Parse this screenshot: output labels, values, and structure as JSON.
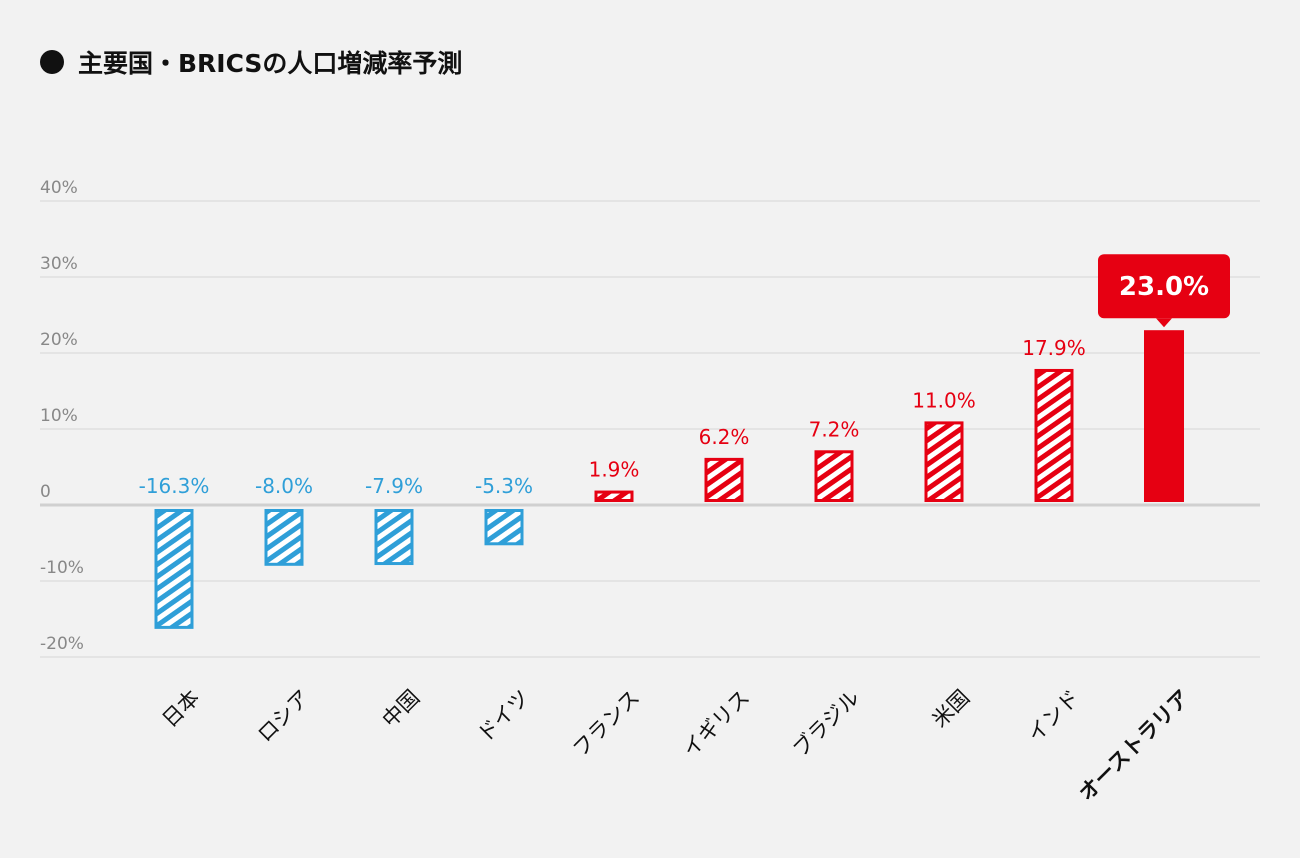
{
  "chart_data": {
    "type": "bar",
    "title": "主要国・BRICSの人口増減率予測",
    "categories": [
      "日本",
      "ロシア",
      "中国",
      "ドイツ",
      "フランス",
      "イギリス",
      "ブラジル",
      "米国",
      "インド",
      "オーストラリア"
    ],
    "values": [
      -16.3,
      -8.0,
      -7.9,
      -5.3,
      1.9,
      6.2,
      7.2,
      11.0,
      17.9,
      23.0
    ],
    "value_labels": [
      "-16.3%",
      "-8.0%",
      "-7.9%",
      "-5.3%",
      "1.9%",
      "6.2%",
      "7.2%",
      "11.0%",
      "17.9%",
      "23.0%"
    ],
    "highlight_index": 9,
    "yticks": [
      40,
      30,
      20,
      10,
      0,
      -10,
      -20
    ],
    "ytick_labels": [
      "40%",
      "30%",
      "20%",
      "10%",
      "0",
      "-10%",
      "-20%"
    ],
    "ylim": [
      -20,
      40
    ],
    "grid": true,
    "colors": {
      "negative": "#2f9fd8",
      "positive": "#e60012",
      "axis_text": "#888888",
      "grid": "#d6d6d6"
    }
  }
}
